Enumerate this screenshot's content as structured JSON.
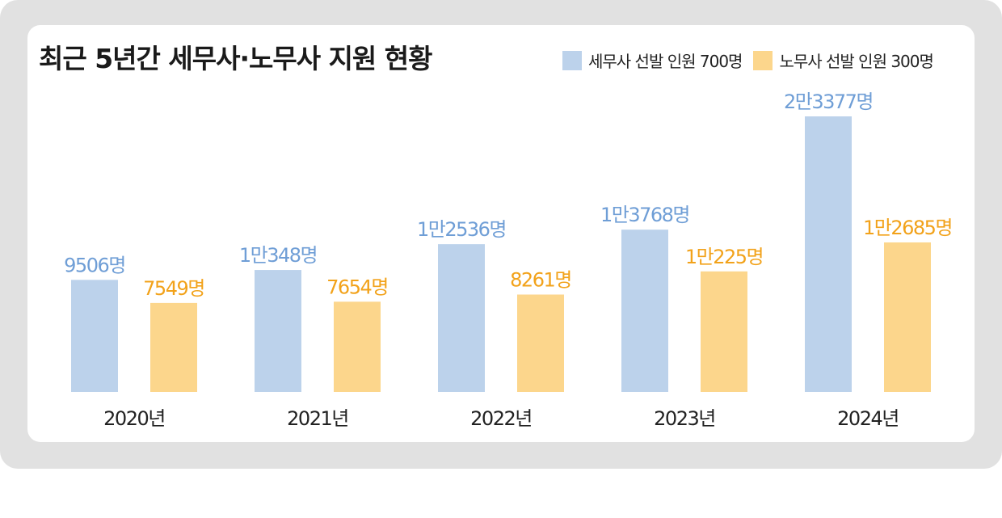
{
  "title": "최근 5년간 세무사·노무사 지원 현황",
  "legend": {
    "series1": "세무사 선발 인원 700명",
    "series2": "노무사 선발 인원 300명"
  },
  "colors": {
    "series1": "#bcd2eb",
    "series2": "#fcd68c",
    "series1_label": "#6f9ed6",
    "series2_label": "#f2a21a",
    "frame": "#e1e1e1"
  },
  "chart_data": {
    "type": "bar",
    "title": "최근 5년간 세무사·노무사 지원 현황",
    "categories": [
      "2020년",
      "2021년",
      "2022년",
      "2023년",
      "2024년"
    ],
    "series": [
      {
        "name": "세무사 선발 인원 700명",
        "values": [
          9506,
          10348,
          12536,
          13768,
          23377
        ],
        "labels": [
          "9506명",
          "1만348명",
          "1만2536명",
          "1만3768명",
          "2만3377명"
        ]
      },
      {
        "name": "노무사 선발 인원 300명",
        "values": [
          7549,
          7654,
          8261,
          10225,
          12685
        ],
        "labels": [
          "7549명",
          "7654명",
          "8261명",
          "1만225명",
          "1만2685명"
        ]
      }
    ],
    "ylim": [
      0,
      23377
    ],
    "grid": false,
    "legend_position": "top-right"
  }
}
